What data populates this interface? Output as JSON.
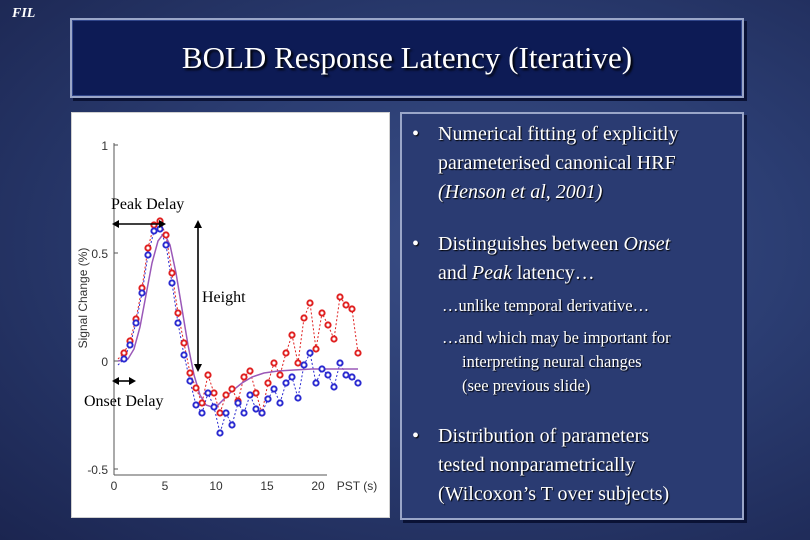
{
  "logo": "FIL",
  "title": "BOLD Response Latency (Iterative)",
  "figure": {
    "labels": {
      "peak_delay": "Peak Delay",
      "height": "Height",
      "onset_delay": "Onset Delay",
      "ylabel": "Signal Change (%)",
      "xlabel": "PST (s)"
    },
    "yticks": [
      "1",
      "0.5",
      "0",
      "-0.5"
    ],
    "xticks": [
      "0",
      "5",
      "10",
      "15",
      "20"
    ]
  },
  "bullets": {
    "b1": {
      "line1": "Numerical fitting of explicitly",
      "line2": "parameterised canonical HRF",
      "line3": "(Henson et al, 2001)"
    },
    "b2": {
      "pre": "Distinguishes between ",
      "onset": "Onset",
      "and": "and ",
      "peak": "Peak",
      "post": " latency…"
    },
    "sub1": "…unlike temporal derivative…",
    "sub2": {
      "line1": "…and which may be important for",
      "line2": "interpreting neural changes",
      "line3": "(see previous slide)"
    },
    "b3": {
      "line1": "Distribution of parameters",
      "line2": "tested nonparametrically",
      "line3": "(Wilcoxon’s T over subjects)"
    },
    "bullet_char": "•"
  },
  "colors": {
    "red_series": "#e02020",
    "blue_series": "#2a2ad0"
  }
}
